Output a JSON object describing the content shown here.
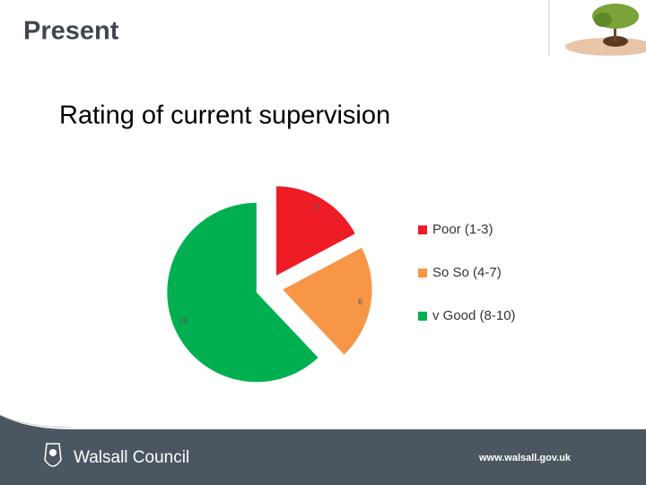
{
  "header": {
    "title": "Present"
  },
  "chart_data": {
    "type": "pie",
    "title": "Rating of current supervision",
    "categories": [
      "Poor (1-3)",
      "So So (4-7)",
      "v Good (8-10)"
    ],
    "values": [
      5,
      6,
      18
    ],
    "colors": [
      "#ee1c25",
      "#f79646",
      "#00b050"
    ],
    "legend": "right",
    "exploded": true
  },
  "footer": {
    "brand": "Walsall Council",
    "url": "www.walsall.gov.uk"
  }
}
